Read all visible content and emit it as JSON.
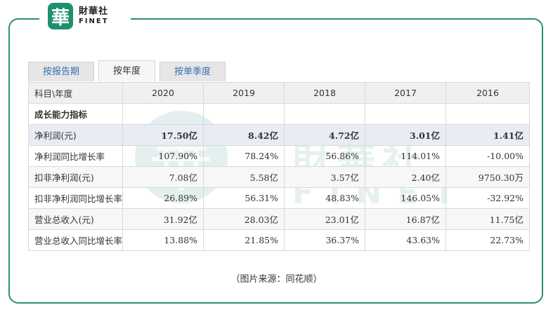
{
  "brand": {
    "name_cn": "財華社",
    "name_en": "FINET",
    "logo_char": "華"
  },
  "tabs": [
    {
      "label": "按报告期",
      "active": false
    },
    {
      "label": "按年度",
      "active": true
    },
    {
      "label": "按单季度",
      "active": false
    }
  ],
  "table": {
    "header_label": "科目\\年度",
    "years": [
      "2020",
      "2019",
      "2018",
      "2017",
      "2016"
    ],
    "section": "成长能力指标",
    "rows": [
      {
        "label": "净利润(元)",
        "values": [
          "17.50亿",
          "8.42亿",
          "4.72亿",
          "3.01亿",
          "1.41亿"
        ],
        "highlight": true
      },
      {
        "label": "净利润同比增长率",
        "values": [
          "107.90%",
          "78.24%",
          "56.86%",
          "114.01%",
          "-10.00%"
        ],
        "highlight": false
      },
      {
        "label": "扣非净利润(元)",
        "values": [
          "7.08亿",
          "5.58亿",
          "3.57亿",
          "2.40亿",
          "9750.30万"
        ],
        "highlight": false
      },
      {
        "label": "扣非净利润同比增长率",
        "values": [
          "26.89%",
          "56.31%",
          "48.83%",
          "146.05%",
          "-32.92%"
        ],
        "highlight": false
      },
      {
        "label": "营业总收入(元)",
        "values": [
          "31.92亿",
          "28.03亿",
          "23.01亿",
          "16.87亿",
          "11.75亿"
        ],
        "highlight": false
      },
      {
        "label": "营业总收入同比增长率",
        "values": [
          "13.88%",
          "21.85%",
          "36.37%",
          "43.63%",
          "22.73%"
        ],
        "highlight": false
      }
    ]
  },
  "caption": "（图片来源：同花顺）",
  "colors": {
    "brand_green": "#2a8f7a",
    "tab_text": "#3a6fb0",
    "highlight_row": "#e8edf5"
  }
}
